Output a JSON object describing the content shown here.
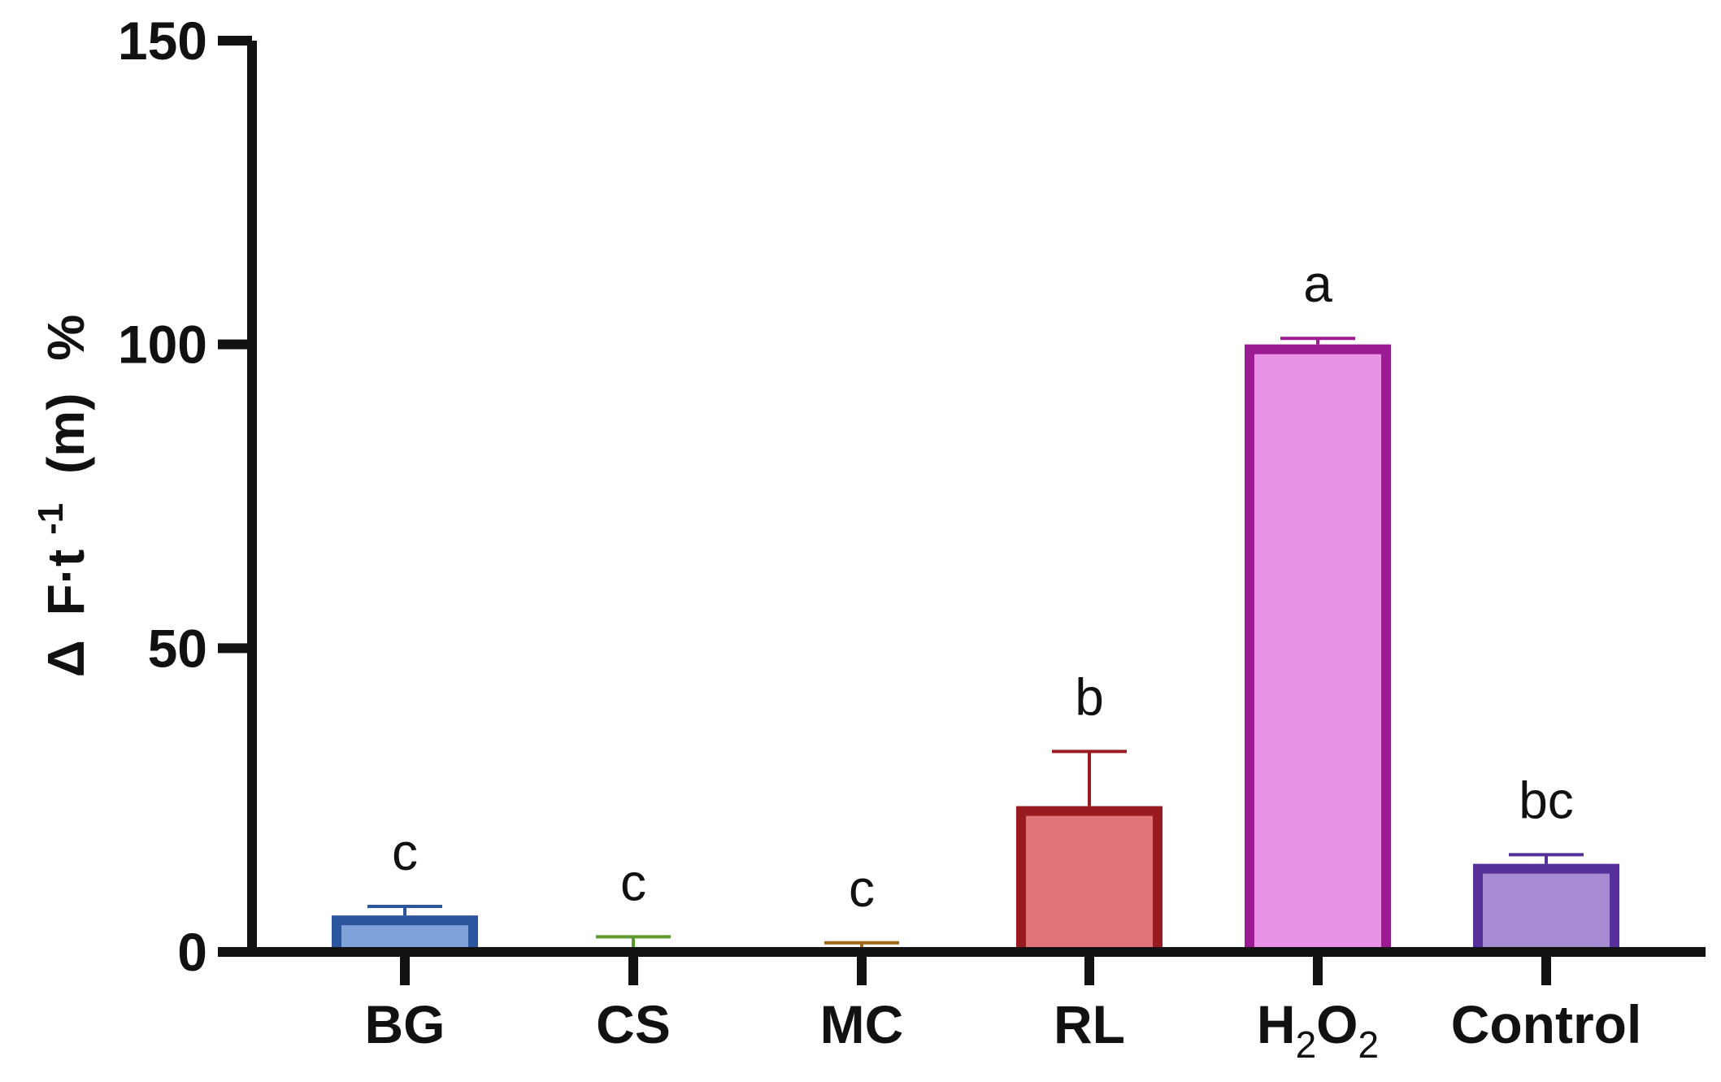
{
  "chart_data": {
    "type": "bar",
    "title": "",
    "xlabel": "",
    "ylabel": "Δ F·t-1 (m) %",
    "ylabel_parts": {
      "delta": "Δ",
      "base": "F·t",
      "sup": "-1",
      "unit": "(m)",
      "percent": "%"
    },
    "ylim": [
      0,
      150
    ],
    "yticks": [
      "0",
      "50",
      "100",
      "150"
    ],
    "yticks_values": [
      0,
      50,
      100,
      150
    ],
    "categories": [
      {
        "label": "BG",
        "base": "BG",
        "sub1": "",
        "mid": "",
        "sub2": ""
      },
      {
        "label": "CS",
        "base": "CS",
        "sub1": "",
        "mid": "",
        "sub2": ""
      },
      {
        "label": "MC",
        "base": "MC",
        "sub1": "",
        "mid": "",
        "sub2": ""
      },
      {
        "label": "RL",
        "base": "RL",
        "sub1": "",
        "mid": "",
        "sub2": ""
      },
      {
        "label": "H2O2",
        "base": "H",
        "sub1": "2",
        "mid": "O",
        "sub2": "2"
      },
      {
        "label": "Control",
        "base": "Control",
        "sub1": "",
        "mid": "",
        "sub2": ""
      }
    ],
    "values": [
      6,
      0,
      0,
      24,
      100,
      14.5
    ],
    "errors": [
      1.5,
      2.5,
      1.5,
      9,
      1,
      1.5
    ],
    "significance": [
      "c",
      "c",
      "c",
      "b",
      "a",
      "bc"
    ],
    "fill_colors": [
      "#7fa2d9",
      "#ffffff",
      "#ffffff",
      "#e07579",
      "#ea93e6",
      "#a68bd3"
    ],
    "stroke_colors": [
      "#2b559c",
      "#5a9a2e",
      "#a0661a",
      "#9a1a22",
      "#9b1c92",
      "#55309a"
    ],
    "grid": false,
    "legend": "none"
  }
}
